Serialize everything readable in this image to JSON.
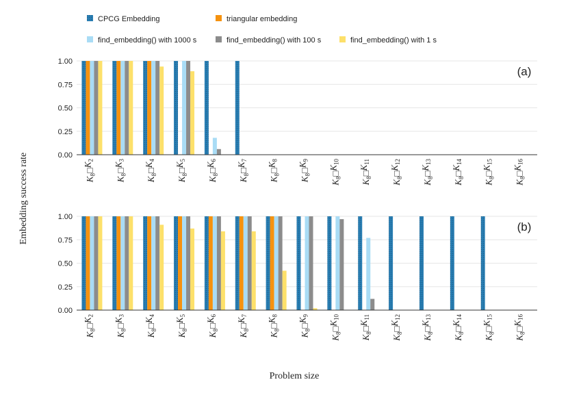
{
  "chart_data": {
    "type": "bar",
    "ylabel": "Embedding success rate",
    "xlabel": "Problem size",
    "ylim": [
      0,
      1
    ],
    "yticks": [
      "0.00",
      "0.25",
      "0.50",
      "0.75",
      "1.00"
    ],
    "categories": [
      "2",
      "3",
      "4",
      "5",
      "6",
      "7",
      "8",
      "9",
      "10",
      "11",
      "12",
      "13",
      "14",
      "15",
      "16"
    ],
    "category_prefix": "K",
    "category_base": "8",
    "category_op": "□",
    "legend": {
      "placement": "top"
    },
    "series_styles": [
      {
        "name": "CPCG Embedding",
        "color": "#2a7fb4",
        "pattern": "dotted"
      },
      {
        "name": "triangular embedding",
        "color": "#f5920f"
      },
      {
        "name": "find_embedding() with 1000 s",
        "color": "#a9dcf5"
      },
      {
        "name": "find_embedding() with 100 s",
        "color": "#8c8c8c"
      },
      {
        "name": "find_embedding() with 1 s",
        "color": "#fde06a"
      }
    ],
    "panels": [
      {
        "tag": "(a)",
        "series": [
          {
            "name": "CPCG Embedding",
            "values": [
              1,
              1,
              1,
              1,
              1,
              1,
              0,
              0,
              0,
              0,
              0,
              0,
              0,
              0,
              0
            ]
          },
          {
            "name": "triangular embedding",
            "values": [
              1,
              1,
              1,
              0,
              0,
              0,
              0,
              0,
              0,
              0,
              0,
              0,
              0,
              0,
              0
            ]
          },
          {
            "name": "find_embedding() with 1000 s",
            "values": [
              1,
              1,
              1,
              1,
              0.18,
              0,
              0,
              0,
              0,
              0,
              0,
              0,
              0,
              0,
              0
            ]
          },
          {
            "name": "find_embedding() with 100 s",
            "values": [
              1,
              1,
              1,
              1,
              0.06,
              0,
              0,
              0,
              0,
              0,
              0,
              0,
              0,
              0,
              0
            ]
          },
          {
            "name": "find_embedding() with 1 s",
            "values": [
              1,
              1,
              0.94,
              0.89,
              0,
              0,
              0,
              0,
              0,
              0,
              0,
              0,
              0,
              0,
              0
            ]
          }
        ]
      },
      {
        "tag": "(b)",
        "series": [
          {
            "name": "CPCG Embedding",
            "values": [
              1,
              1,
              1,
              1,
              1,
              1,
              1,
              1,
              1,
              1,
              1,
              1,
              1,
              1,
              0
            ]
          },
          {
            "name": "triangular embedding",
            "values": [
              1,
              1,
              1,
              1,
              1,
              1,
              1,
              0,
              0,
              0,
              0,
              0,
              0,
              0,
              0
            ]
          },
          {
            "name": "find_embedding() with 1000 s",
            "values": [
              1,
              1,
              1,
              1,
              1,
              1,
              1,
              1,
              1,
              0.77,
              0,
              0,
              0,
              0,
              0
            ]
          },
          {
            "name": "find_embedding() with 100 s",
            "values": [
              1,
              1,
              1,
              1,
              1,
              1,
              1,
              1,
              0.97,
              0.12,
              0,
              0,
              0,
              0,
              0
            ]
          },
          {
            "name": "find_embedding() with 1 s",
            "values": [
              1,
              1,
              0.91,
              0.87,
              0.84,
              0.84,
              0.42,
              0.02,
              0,
              0,
              0,
              0,
              0,
              0,
              0
            ]
          }
        ]
      }
    ]
  }
}
